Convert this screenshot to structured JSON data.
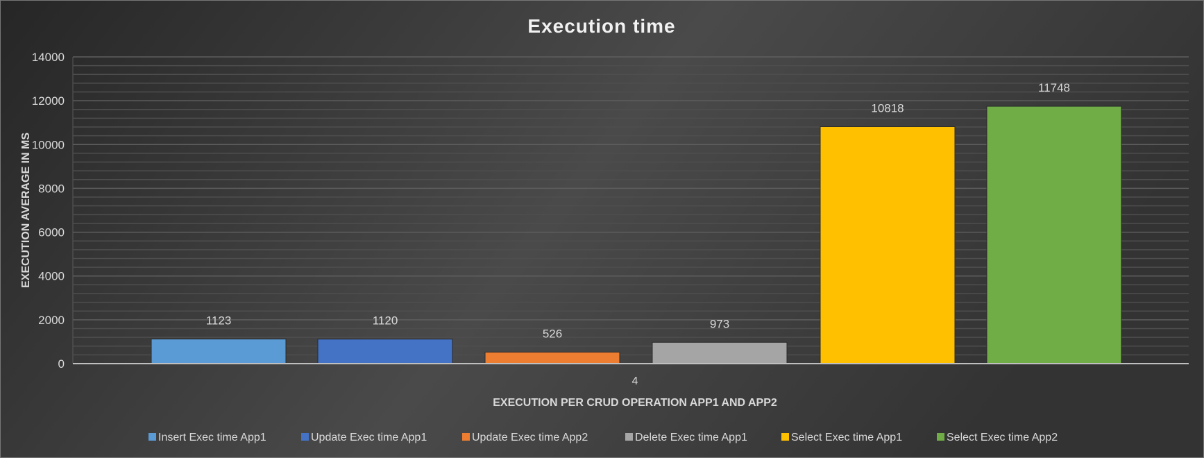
{
  "chart_data": {
    "type": "bar",
    "title": "Execution time",
    "xlabel": "EXECUTION PER CRUD OPERATION APP1 AND APP2",
    "ylabel": "EXECUTION  AVERAGE IN MS",
    "categories": [
      "4"
    ],
    "ylim": [
      0,
      14000
    ],
    "yticks": [
      0,
      2000,
      4000,
      6000,
      8000,
      10000,
      12000,
      14000
    ],
    "grid": true,
    "legend": "bottom",
    "series": [
      {
        "name": "Insert Exec time App1",
        "values": [
          1123
        ],
        "color": "#5b9bd5"
      },
      {
        "name": "Update Exec time App1",
        "values": [
          1120
        ],
        "color": "#4472c4"
      },
      {
        "name": "Update Exec time App2",
        "values": [
          526
        ],
        "color": "#ed7d31"
      },
      {
        "name": "Delete Exec time App1",
        "values": [
          973
        ],
        "color": "#a5a5a5"
      },
      {
        "name": "Select Exec time App1",
        "values": [
          10818
        ],
        "color": "#ffc000"
      },
      {
        "name": "Select Exec time App2",
        "values": [
          11748
        ],
        "color": "#70ad47"
      }
    ],
    "background": "#3a3a3a"
  }
}
